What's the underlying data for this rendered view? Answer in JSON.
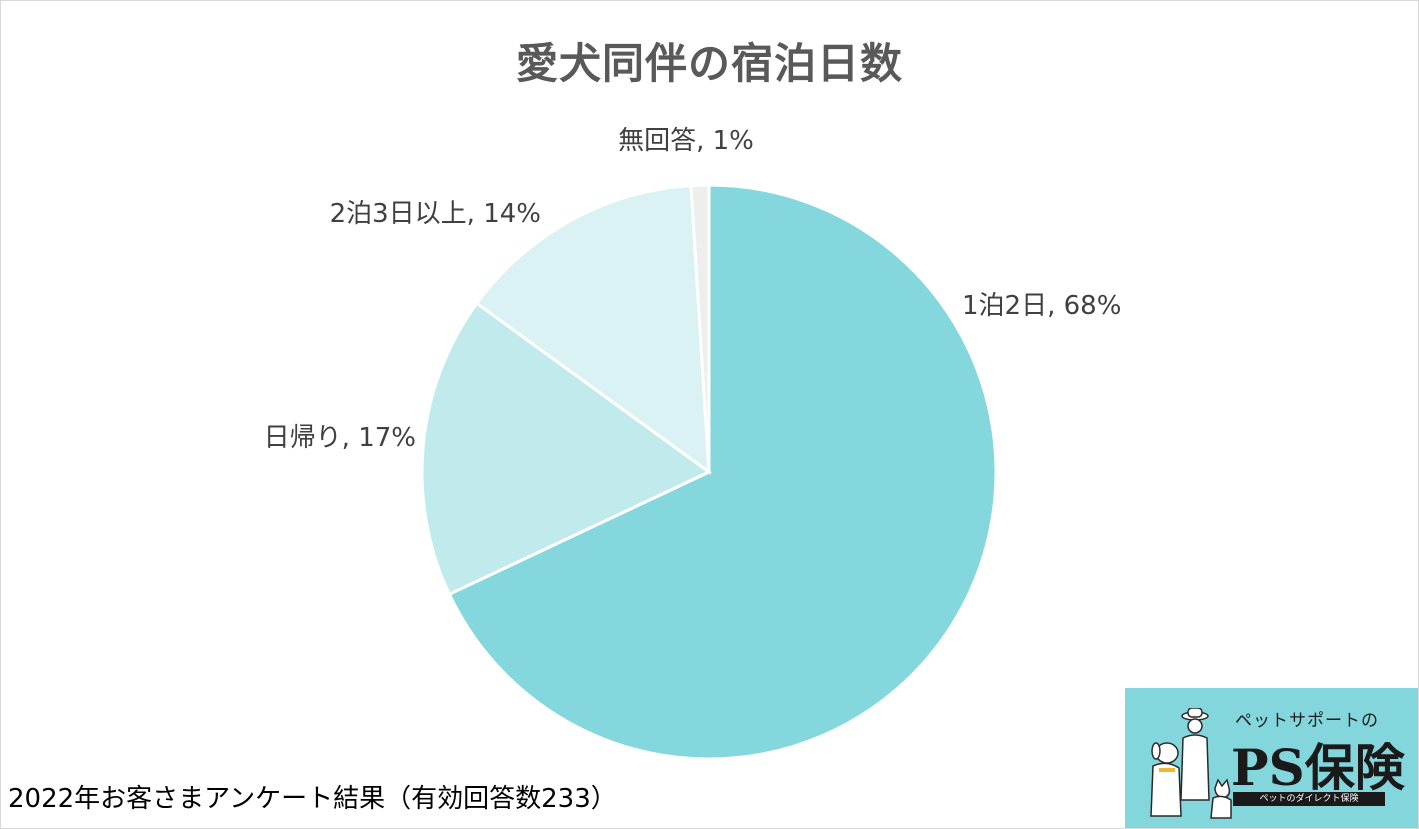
{
  "chart_data": {
    "type": "pie",
    "title": "愛犬同伴の宿泊日数",
    "slices": [
      {
        "label": "1泊2日",
        "value": 68,
        "color": "#83d7dd",
        "data_label": "1泊2日, 68%"
      },
      {
        "label": "日帰り",
        "value": 17,
        "color": "#c1eaed",
        "data_label": "日帰り, 17%"
      },
      {
        "label": "2泊3日以上",
        "value": 14,
        "color": "#daf2f4",
        "data_label": "2泊3日以上, 14%"
      },
      {
        "label": "無回答",
        "value": 1,
        "color": "#eeeeee",
        "data_label": "無回答, 1%"
      }
    ],
    "legend": "none",
    "labels_outside": true
  },
  "footnote": "2022年お客さまアンケート結果（有効回答数233）",
  "logo": {
    "subtitle": "ペットサポートの",
    "name": "PS保険",
    "tagline": "ペットのダイレクト保険"
  }
}
